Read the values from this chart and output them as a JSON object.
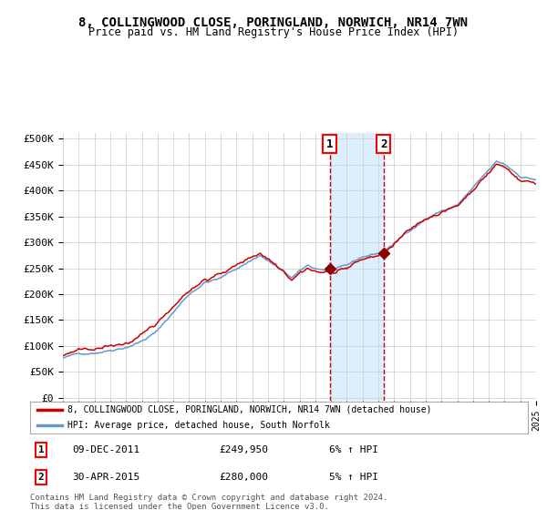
{
  "title": "8, COLLINGWOOD CLOSE, PORINGLAND, NORWICH, NR14 7WN",
  "subtitle": "Price paid vs. HM Land Registry's House Price Index (HPI)",
  "legend_line1": "8, COLLINGWOOD CLOSE, PORINGLAND, NORWICH, NR14 7WN (detached house)",
  "legend_line2": "HPI: Average price, detached house, South Norfolk",
  "transaction1_label": "1",
  "transaction1_date": "09-DEC-2011",
  "transaction1_price": "£249,950",
  "transaction1_hpi": "6% ↑ HPI",
  "transaction1_year": 2011.93,
  "transaction2_label": "2",
  "transaction2_date": "30-APR-2015",
  "transaction2_price": "£280,000",
  "transaction2_hpi": "5% ↑ HPI",
  "transaction2_year": 2015.33,
  "ylabel_ticks": [
    "£0",
    "£50K",
    "£100K",
    "£150K",
    "£200K",
    "£250K",
    "£300K",
    "£350K",
    "£400K",
    "£450K",
    "£500K"
  ],
  "ytick_values": [
    0,
    50000,
    100000,
    150000,
    200000,
    250000,
    300000,
    350000,
    400000,
    450000,
    500000
  ],
  "xstart": 1995,
  "xend": 2025,
  "line_color_red": "#cc0000",
  "line_color_blue": "#6699cc",
  "bg_color": "#ffffff",
  "grid_color": "#cccccc",
  "shade_color": "#ddeeff",
  "footer_text": "Contains HM Land Registry data © Crown copyright and database right 2024.\nThis data is licensed under the Open Government Licence v3.0.",
  "point1_value": 249950,
  "point2_value": 280000
}
